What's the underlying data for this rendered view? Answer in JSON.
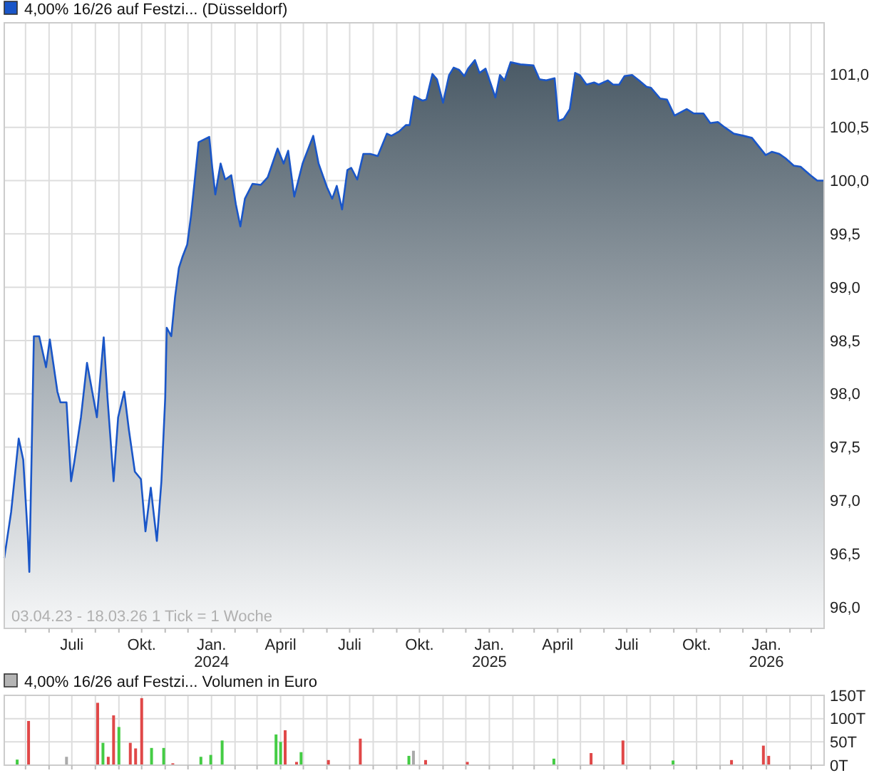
{
  "chart_data": [
    {
      "type": "area",
      "legend": "top left",
      "grid": true,
      "annotations": [
        "03.04.23 - 18.03.26   1 Tick = 1 Woche"
      ],
      "xlim": [
        "2023-04-03",
        "2026-03-18"
      ],
      "ylim": [
        95.8,
        101.48
      ],
      "xticks": [
        {
          "value": "2023-05-01",
          "label": null
        },
        {
          "value": "2023-06-01",
          "label": null
        },
        {
          "value": "2023-07-01",
          "label": "Juli"
        },
        {
          "value": "2023-08-01",
          "label": null
        },
        {
          "value": "2023-09-01",
          "label": null
        },
        {
          "value": "2023-10-01",
          "label": "Okt."
        },
        {
          "value": "2023-11-01",
          "label": null
        },
        {
          "value": "2023-12-01",
          "label": null
        },
        {
          "value": "2024-01-01",
          "label": "Jan.\n2024"
        },
        {
          "value": "2024-02-01",
          "label": null
        },
        {
          "value": "2024-03-01",
          "label": null
        },
        {
          "value": "2024-04-01",
          "label": "April"
        },
        {
          "value": "2024-05-01",
          "label": null
        },
        {
          "value": "2024-06-01",
          "label": null
        },
        {
          "value": "2024-07-01",
          "label": "Juli"
        },
        {
          "value": "2024-08-01",
          "label": null
        },
        {
          "value": "2024-09-01",
          "label": null
        },
        {
          "value": "2024-10-01",
          "label": "Okt."
        },
        {
          "value": "2024-11-01",
          "label": null
        },
        {
          "value": "2024-12-01",
          "label": null
        },
        {
          "value": "2025-01-01",
          "label": "Jan.\n2025"
        },
        {
          "value": "2025-02-01",
          "label": null
        },
        {
          "value": "2025-03-01",
          "label": null
        },
        {
          "value": "2025-04-01",
          "label": "April"
        },
        {
          "value": "2025-05-01",
          "label": null
        },
        {
          "value": "2025-06-01",
          "label": null
        },
        {
          "value": "2025-07-01",
          "label": "Juli"
        },
        {
          "value": "2025-08-01",
          "label": null
        },
        {
          "value": "2025-09-01",
          "label": null
        },
        {
          "value": "2025-10-01",
          "label": "Okt."
        },
        {
          "value": "2025-11-01",
          "label": null
        },
        {
          "value": "2025-12-01",
          "label": null
        },
        {
          "value": "2026-01-01",
          "label": "Jan.\n2026"
        },
        {
          "value": "2026-02-01",
          "label": null
        },
        {
          "value": "2026-03-01",
          "label": null
        }
      ],
      "yticks": [
        {
          "value": 96,
          "label": "96,0"
        },
        {
          "value": 96.5,
          "label": "96,5"
        },
        {
          "value": 97,
          "label": "97,0"
        },
        {
          "value": 97.5,
          "label": "97,5"
        },
        {
          "value": 98,
          "label": "98,0"
        },
        {
          "value": 98.5,
          "label": "98,5"
        },
        {
          "value": 99,
          "label": "99,0"
        },
        {
          "value": 99.5,
          "label": "99,5"
        },
        {
          "value": 100,
          "label": "100,0"
        },
        {
          "value": 100.5,
          "label": "100,5"
        },
        {
          "value": 101,
          "label": "101,0"
        }
      ],
      "x": [
        "2023-04-03",
        "2023-04-12",
        "2023-04-22",
        "2023-04-28",
        "2023-05-04",
        "2023-05-06",
        "2023-05-09",
        "2023-05-12",
        "2023-05-19",
        "2023-05-28",
        "2023-06-02",
        "2023-06-12",
        "2023-06-16",
        "2023-06-24",
        "2023-06-30",
        "2023-07-04",
        "2023-07-13",
        "2023-07-21",
        "2023-08-03",
        "2023-08-12",
        "2023-08-17",
        "2023-08-25",
        "2023-08-31",
        "2023-09-08",
        "2023-09-14",
        "2023-09-22",
        "2023-09-30",
        "2023-10-06",
        "2023-10-13",
        "2023-10-16",
        "2023-10-21",
        "2023-10-27",
        "2023-11-01",
        "2023-11-03",
        "2023-11-09",
        "2023-11-14",
        "2023-11-19",
        "2023-11-24",
        "2023-11-30",
        "2023-12-05",
        "2023-12-10",
        "2023-12-15",
        "2023-12-29",
        "2024-01-02",
        "2024-01-06",
        "2024-01-13",
        "2024-01-19",
        "2024-01-27",
        "2024-02-02",
        "2024-02-08",
        "2024-02-14",
        "2024-02-24",
        "2024-03-06",
        "2024-03-15",
        "2024-03-28",
        "2024-04-05",
        "2024-04-11",
        "2024-04-19",
        "2024-04-30",
        "2024-05-14",
        "2024-05-21",
        "2024-06-01",
        "2024-06-08",
        "2024-06-14",
        "2024-06-21",
        "2024-06-28",
        "2024-07-03",
        "2024-07-11",
        "2024-07-19",
        "2024-07-28",
        "2024-08-07",
        "2024-08-19",
        "2024-08-25",
        "2024-09-04",
        "2024-09-13",
        "2024-09-18",
        "2024-09-24",
        "2024-10-05",
        "2024-10-10",
        "2024-10-18",
        "2024-10-24",
        "2024-11-01",
        "2024-11-09",
        "2024-11-15",
        "2024-11-22",
        "2024-11-29",
        "2024-12-04",
        "2024-12-13",
        "2024-12-19",
        "2024-12-27",
        "2025-01-09",
        "2025-01-15",
        "2025-01-21",
        "2025-01-29",
        "2025-02-11",
        "2025-02-28",
        "2025-03-08",
        "2025-03-17",
        "2025-03-28",
        "2025-04-02",
        "2025-04-09",
        "2025-04-17",
        "2025-04-24",
        "2025-04-30",
        "2025-05-09",
        "2025-05-19",
        "2025-05-25",
        "2025-06-06",
        "2025-06-13",
        "2025-06-21",
        "2025-06-28",
        "2025-07-08",
        "2025-07-17",
        "2025-07-27",
        "2025-08-02",
        "2025-08-14",
        "2025-08-23",
        "2025-09-02",
        "2025-09-18",
        "2025-09-27",
        "2025-10-10",
        "2025-10-19",
        "2025-10-29",
        "2025-11-07",
        "2025-11-19",
        "2025-12-02",
        "2025-12-13",
        "2025-12-31",
        "2026-01-08",
        "2026-01-18",
        "2026-01-26",
        "2026-02-06",
        "2026-02-15",
        "2026-02-28",
        "2026-03-09",
        "2026-03-18"
      ],
      "series": [
        {
          "name": "4,00% 16/26 auf Festzi... (Düsseldorf)",
          "color": "#1a56c8",
          "values": [
            96.46,
            96.89,
            97.58,
            97.38,
            96.66,
            96.33,
            97.42,
            98.54,
            98.54,
            98.25,
            98.51,
            98.02,
            97.92,
            97.92,
            97.18,
            97.35,
            97.78,
            98.29,
            97.78,
            98.53,
            97.96,
            97.18,
            97.78,
            98.02,
            97.67,
            97.27,
            97.2,
            96.71,
            97.12,
            96.93,
            96.62,
            97.18,
            97.96,
            98.62,
            98.54,
            98.91,
            99.18,
            99.29,
            99.4,
            99.67,
            100.01,
            100.36,
            100.41,
            100.12,
            99.87,
            100.16,
            100.01,
            100.05,
            99.78,
            99.57,
            99.83,
            99.97,
            99.96,
            100.03,
            100.3,
            100.16,
            100.28,
            99.85,
            100.16,
            100.42,
            100.16,
            99.94,
            99.83,
            99.95,
            99.73,
            100.1,
            100.12,
            100.01,
            100.25,
            100.25,
            100.23,
            100.44,
            100.42,
            100.46,
            100.52,
            100.52,
            100.79,
            100.75,
            100.76,
            101.0,
            100.95,
            100.73,
            100.99,
            101.06,
            101.04,
            100.98,
            101.05,
            101.13,
            101.01,
            101.05,
            100.78,
            100.99,
            100.94,
            101.11,
            101.09,
            101.08,
            100.95,
            100.94,
            100.96,
            100.56,
            100.58,
            100.67,
            101.01,
            100.99,
            100.9,
            100.92,
            100.9,
            100.94,
            100.9,
            100.9,
            100.98,
            100.99,
            100.94,
            100.88,
            100.87,
            100.77,
            100.76,
            100.61,
            100.67,
            100.63,
            100.63,
            100.54,
            100.55,
            100.5,
            100.44,
            100.42,
            100.4,
            100.24,
            100.27,
            100.25,
            100.21,
            100.14,
            100.13,
            100.05,
            100.0,
            100.0
          ]
        }
      ]
    },
    {
      "type": "bar",
      "legend": "top left",
      "grid": true,
      "tick_labels": "y",
      "xlim": [
        "2023-04-03",
        "2026-03-18"
      ],
      "ylim": [
        0,
        150
      ],
      "xticks": [
        {
          "value": "2023-05-01",
          "label": null
        },
        {
          "value": "2023-06-01",
          "label": null
        },
        {
          "value": "2023-07-01",
          "label": null
        },
        {
          "value": "2023-08-01",
          "label": null
        },
        {
          "value": "2023-09-01",
          "label": null
        },
        {
          "value": "2023-10-01",
          "label": null
        },
        {
          "value": "2023-11-01",
          "label": null
        },
        {
          "value": "2023-12-01",
          "label": null
        },
        {
          "value": "2024-01-01",
          "label": null
        },
        {
          "value": "2024-02-01",
          "label": null
        },
        {
          "value": "2024-03-01",
          "label": null
        },
        {
          "value": "2024-04-01",
          "label": null
        },
        {
          "value": "2024-05-01",
          "label": null
        },
        {
          "value": "2024-06-01",
          "label": null
        },
        {
          "value": "2024-07-01",
          "label": null
        },
        {
          "value": "2024-08-01",
          "label": null
        },
        {
          "value": "2024-09-01",
          "label": null
        },
        {
          "value": "2024-10-01",
          "label": null
        },
        {
          "value": "2024-11-01",
          "label": null
        },
        {
          "value": "2024-12-01",
          "label": null
        },
        {
          "value": "2025-01-01",
          "label": null
        },
        {
          "value": "2025-02-01",
          "label": null
        },
        {
          "value": "2025-03-01",
          "label": null
        },
        {
          "value": "2025-04-01",
          "label": null
        },
        {
          "value": "2025-05-01",
          "label": null
        },
        {
          "value": "2025-06-01",
          "label": null
        },
        {
          "value": "2025-07-01",
          "label": null
        },
        {
          "value": "2025-08-01",
          "label": null
        },
        {
          "value": "2025-09-01",
          "label": null
        },
        {
          "value": "2025-10-01",
          "label": null
        },
        {
          "value": "2025-11-01",
          "label": null
        },
        {
          "value": "2025-12-01",
          "label": null
        },
        {
          "value": "2026-01-01",
          "label": null
        },
        {
          "value": "2026-02-01",
          "label": null
        },
        {
          "value": "2026-03-01",
          "label": null
        }
      ],
      "yticks": [
        {
          "value": 0,
          "label": "0T"
        },
        {
          "value": 50,
          "label": "50T"
        },
        {
          "value": 100,
          "label": "100T"
        },
        {
          "value": 150,
          "label": "150T"
        }
      ],
      "x": [
        "2023-04-20",
        "2023-05-05",
        "2023-06-24",
        "2023-08-04",
        "2023-08-11",
        "2023-08-18",
        "2023-08-25",
        "2023-09-01",
        "2023-09-16",
        "2023-09-23",
        "2023-10-01",
        "2023-10-14",
        "2023-10-30",
        "2023-11-11",
        "2023-12-18",
        "2023-12-31",
        "2024-01-15",
        "2024-03-26",
        "2024-04-01",
        "2024-04-07",
        "2024-04-22",
        "2024-04-28",
        "2024-06-03",
        "2024-07-15",
        "2024-09-17",
        "2024-09-23",
        "2024-10-09",
        "2024-12-03",
        "2025-03-27",
        "2025-05-15",
        "2025-06-26",
        "2025-08-31",
        "2025-11-16",
        "2025-12-28",
        "2026-01-04"
      ],
      "series": [
        {
          "name": "4,00% 16/26 auf Festzi... Volumen in Euro",
          "color": "#b4b4b4",
          "values": [
            12,
            95,
            18,
            134,
            48,
            18,
            107,
            82,
            48,
            36,
            144,
            37,
            37,
            4,
            18,
            22,
            53,
            66,
            50,
            75,
            7,
            28,
            11,
            57,
            20,
            31,
            11,
            7,
            14,
            26,
            53,
            10,
            11,
            42,
            20
          ],
          "colors": [
            "#44cc44",
            "#e04848",
            "#aaaaaa",
            "#e04848",
            "#44cc44",
            "#e04848",
            "#e04848",
            "#44cc44",
            "#e04848",
            "#e04848",
            "#e04848",
            "#44cc44",
            "#44cc44",
            "#e04848",
            "#44cc44",
            "#44cc44",
            "#44cc44",
            "#44cc44",
            "#44cc44",
            "#e04848",
            "#e04848",
            "#44cc44",
            "#e04848",
            "#e04848",
            "#44cc44",
            "#aaaaaa",
            "#e04848",
            "#e04848",
            "#44cc44",
            "#e04848",
            "#e04848",
            "#44cc44",
            "#e04848",
            "#e04848",
            "#e04848"
          ]
        }
      ]
    }
  ]
}
